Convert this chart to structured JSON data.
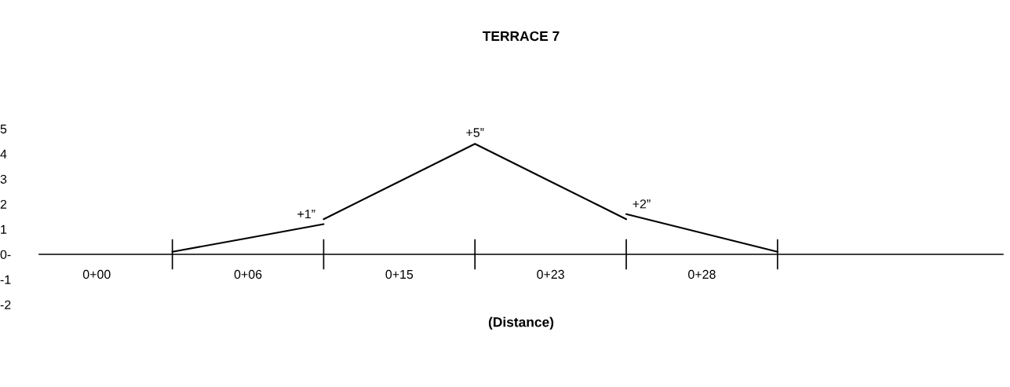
{
  "chart_data": {
    "type": "line",
    "title": "TERRACE 7",
    "xlabel": "(Distance)",
    "categories": [
      "0+00",
      null,
      "0+06",
      null,
      "0+15",
      null,
      "0+23",
      null,
      "0+28",
      null
    ],
    "series": [
      {
        "color": "#000000",
        "values": [
          null,
          0.1,
          0.65,
          1.2,
          null,
          null,
          null,
          null,
          null,
          null
        ]
      },
      {
        "color": "#000000",
        "values": [
          null,
          null,
          null,
          1.4,
          2.9,
          4.4,
          2.9,
          1.4,
          null,
          null
        ]
      },
      {
        "color": "#000000",
        "values": [
          null,
          null,
          null,
          null,
          null,
          null,
          null,
          1.6,
          0.85,
          0.1
        ]
      }
    ],
    "ylim": [
      -2,
      5
    ],
    "yticks": [
      5,
      4,
      3,
      2,
      1,
      {
        "value": 0,
        "label": "0-"
      },
      -1,
      -2
    ],
    "annotations": [
      "+1”",
      "+5”",
      "+2”"
    ],
    "grid": false,
    "legend": false,
    "marker": "none",
    "line_style": "solid"
  }
}
